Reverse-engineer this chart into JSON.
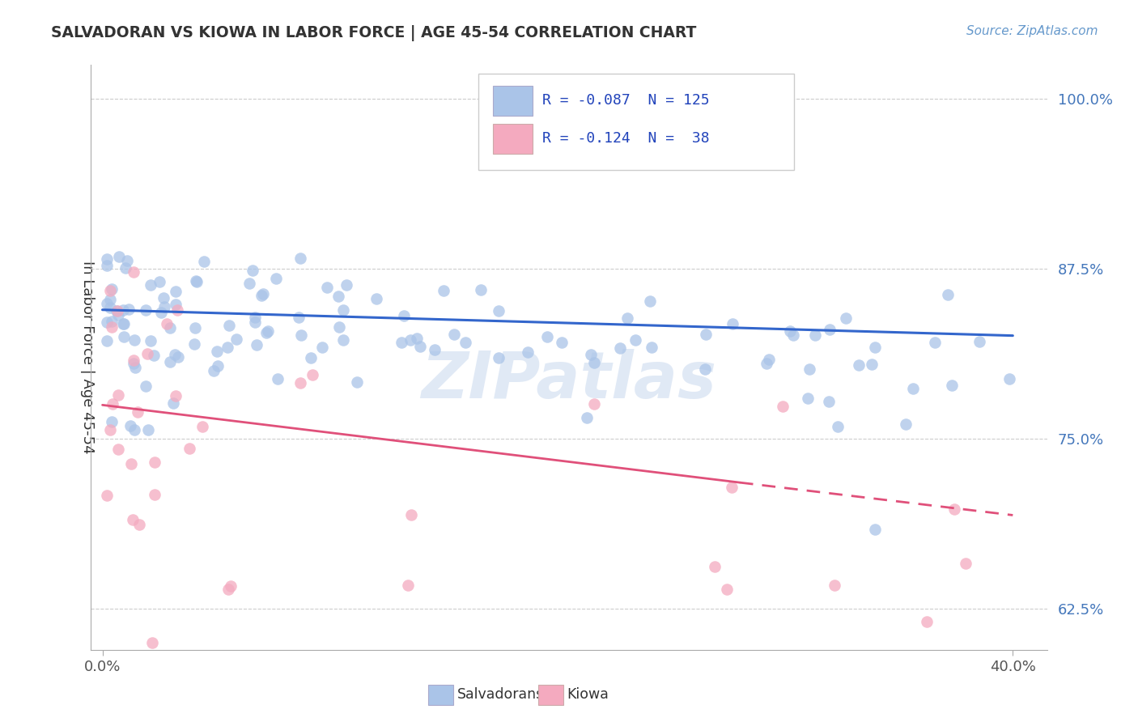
{
  "title": "SALVADORAN VS KIOWA IN LABOR FORCE | AGE 45-54 CORRELATION CHART",
  "source_text": "Source: ZipAtlas.com",
  "ylabel": "In Labor Force | Age 45-54",
  "xlim": [
    -0.005,
    0.415
  ],
  "ylim": [
    0.595,
    1.025
  ],
  "yticks": [
    0.625,
    0.75,
    0.875,
    1.0
  ],
  "ytick_labels": [
    "62.5%",
    "75.0%",
    "87.5%",
    "100.0%"
  ],
  "xticks": [
    0.0,
    0.4
  ],
  "xtick_labels": [
    "0.0%",
    "40.0%"
  ],
  "salvadoran_color": "#aac4e8",
  "kiowa_color": "#f4aabf",
  "salvadoran_line_color": "#3366cc",
  "kiowa_line_color": "#e0507a",
  "background_color": "#ffffff",
  "grid_color": "#cccccc",
  "legend_label1": "Salvadorans",
  "legend_label2": "Kiowa",
  "salv_line_x0": 0.0,
  "salv_line_y0": 0.845,
  "salv_line_x1": 0.4,
  "salv_line_y1": 0.826,
  "kiowa_line_solid_x0": 0.0,
  "kiowa_line_solid_y0": 0.775,
  "kiowa_line_solid_x1": 0.28,
  "kiowa_line_solid_y1": 0.718,
  "kiowa_line_dash_x0": 0.28,
  "kiowa_line_dash_y0": 0.718,
  "kiowa_line_dash_x1": 0.4,
  "kiowa_line_dash_y1": 0.694,
  "watermark_text": "ZIPatlas",
  "legend_r1": "-0.087",
  "legend_n1": "125",
  "legend_r2": "-0.124",
  "legend_n2": " 38"
}
